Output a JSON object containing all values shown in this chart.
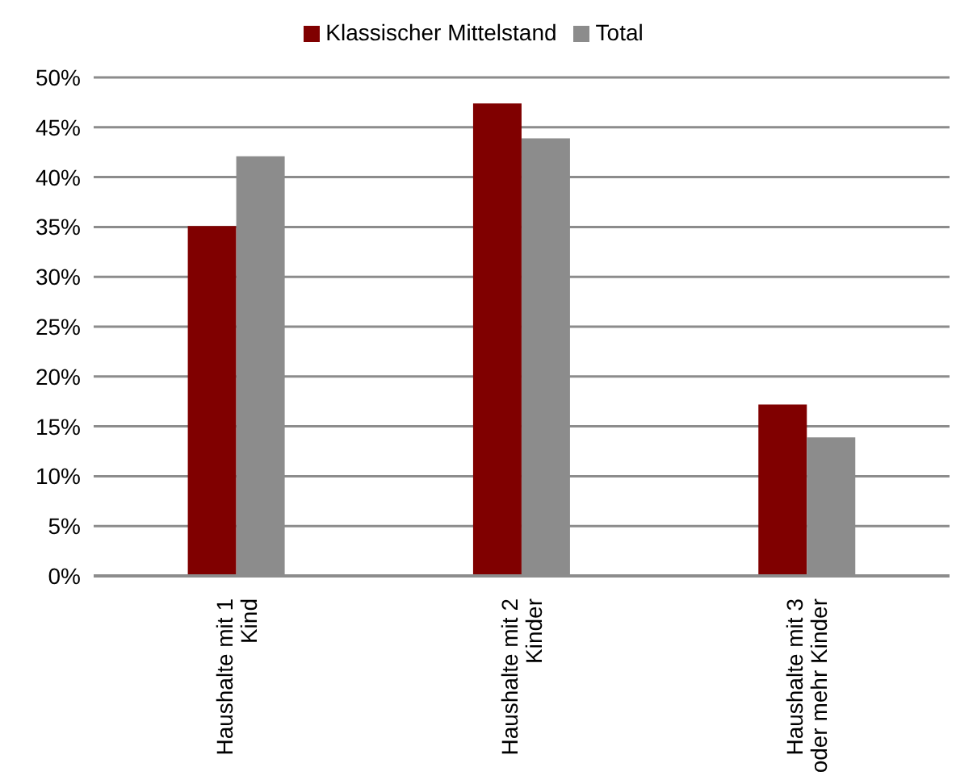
{
  "chart_data": {
    "type": "bar",
    "categories": [
      "Haushalte mit 1 Kind",
      "Haushalte mit 2 Kinder",
      "Haushalte mit 3 oder mehr Kinder"
    ],
    "series": [
      {
        "name": "Klassischer Mittelstand",
        "color": "#800000",
        "values": [
          35.1,
          47.4,
          17.2
        ]
      },
      {
        "name": "Total",
        "color": "#8c8c8c",
        "values": [
          42.1,
          43.9,
          13.9
        ]
      }
    ],
    "ylim": [
      0,
      50
    ],
    "yticks": [
      {
        "value": 0,
        "label": "0%"
      },
      {
        "value": 5,
        "label": "5%"
      },
      {
        "value": 10,
        "label": "10%"
      },
      {
        "value": 15,
        "label": "15%"
      },
      {
        "value": 20,
        "label": "20%"
      },
      {
        "value": 25,
        "label": "25%"
      },
      {
        "value": 30,
        "label": "30%"
      },
      {
        "value": 35,
        "label": "35%"
      },
      {
        "value": 40,
        "label": "40%"
      },
      {
        "value": 45,
        "label": "45%"
      },
      {
        "value": 50,
        "label": "50%"
      }
    ],
    "grid": "y",
    "legend": "top"
  }
}
